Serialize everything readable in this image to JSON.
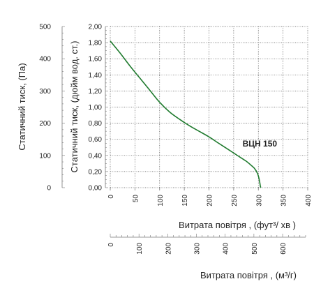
{
  "colors": {
    "curve": "#1f7a2e",
    "grid": "#555555",
    "axis": "#777777",
    "text": "#222222"
  },
  "chart_data": {
    "type": "line",
    "title": "",
    "y_axes": {
      "left_pa": {
        "label": "Статичний тиск, (Па)",
        "ticks": [
          "0",
          "100",
          "200",
          "300",
          "400",
          "500"
        ],
        "range": [
          0,
          500
        ]
      },
      "left_inwg": {
        "label": "Статичний тиск, (дюйм вод. ст.)",
        "ticks": [
          "0,00",
          "0,20",
          "0,40",
          "0,60",
          "0,80",
          "1,00",
          "1,20",
          "1,40",
          "1,60",
          "1,80",
          "2,00"
        ],
        "range": [
          0,
          2.0
        ]
      }
    },
    "x_axes": {
      "cfm": {
        "label": "Витрата повітря , (фут³/ хв )",
        "ticks": [
          "0",
          "50",
          "100",
          "150",
          "200",
          "250",
          "300",
          "350",
          "400"
        ],
        "range": [
          0,
          400
        ]
      },
      "m3h": {
        "label": "Витрата повітря , (м³/г)",
        "ticks": [
          "0",
          "100",
          "200",
          "300",
          "400",
          "500",
          "600"
        ],
        "range": [
          0,
          680
        ]
      }
    },
    "grid": true,
    "series": [
      {
        "name": "ВЦН 150",
        "x_unit": "cfm",
        "y_unit": "inwg",
        "x": [
          0,
          20,
          40,
          60,
          80,
          100,
          120,
          140,
          160,
          180,
          200,
          220,
          240,
          260,
          275,
          285,
          292,
          298,
          301,
          303,
          304,
          305
        ],
        "y": [
          1.82,
          1.67,
          1.51,
          1.36,
          1.21,
          1.06,
          0.94,
          0.85,
          0.77,
          0.7,
          0.63,
          0.55,
          0.47,
          0.39,
          0.33,
          0.28,
          0.24,
          0.18,
          0.12,
          0.06,
          0.02,
          0.0
        ]
      }
    ]
  }
}
